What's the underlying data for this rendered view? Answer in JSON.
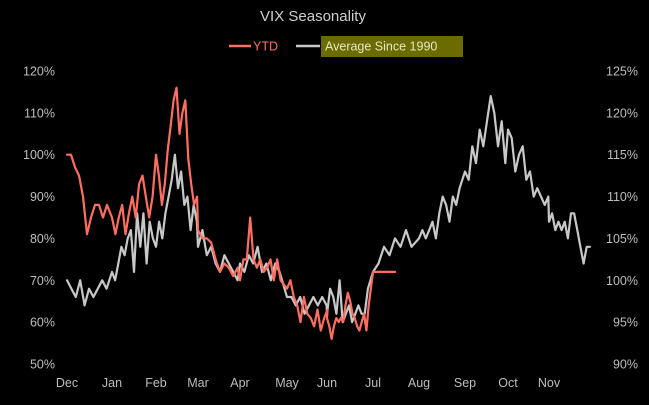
{
  "chart_data": {
    "type": "line",
    "title": "VIX Seasonality",
    "legend": {
      "placement": "top-center"
    },
    "x_ticks": [
      "Dec",
      "Jan",
      "Feb",
      "Mar",
      "Apr",
      "May",
      "Jun",
      "Jul",
      "Aug",
      "Sep",
      "Oct",
      "Nov"
    ],
    "y_left": {
      "ticks": [
        "50%",
        "60%",
        "70%",
        "80%",
        "90%",
        "100%",
        "110%",
        "120%"
      ],
      "range": [
        50,
        120
      ]
    },
    "y_right": {
      "ticks": [
        "90%",
        "95%",
        "100%",
        "105%",
        "110%",
        "115%",
        "120%",
        "125%"
      ],
      "range": [
        90,
        125
      ]
    },
    "grid": false,
    "series": [
      {
        "name": "YTD",
        "axis": "left",
        "color": "#ff6f61",
        "points": [
          [
            "Dec",
            100
          ],
          [
            "Dec",
            100
          ],
          [
            "Dec",
            97
          ],
          [
            "Dec",
            95
          ],
          [
            "Dec",
            90
          ],
          [
            "Dec",
            81
          ],
          [
            "Dec",
            85
          ],
          [
            "Dec",
            88
          ],
          [
            "Dec",
            88
          ],
          [
            "Dec",
            85
          ],
          [
            "Dec",
            88
          ],
          [
            "Jan",
            85
          ],
          [
            "Jan",
            81
          ],
          [
            "Jan",
            85
          ],
          [
            "Jan",
            88
          ],
          [
            "Jan",
            81
          ],
          [
            "Jan",
            86
          ],
          [
            "Jan",
            90
          ],
          [
            "Jan",
            85
          ],
          [
            "Jan",
            93
          ],
          [
            "Jan",
            95
          ],
          [
            "Jan",
            90
          ],
          [
            "Jan",
            85
          ],
          [
            "Jan",
            90
          ],
          [
            "Feb",
            100
          ],
          [
            "Feb",
            95
          ],
          [
            "Feb",
            88
          ],
          [
            "Feb",
            93
          ],
          [
            "Feb",
            101
          ],
          [
            "Feb",
            107
          ],
          [
            "Feb",
            113
          ],
          [
            "Feb",
            116
          ],
          [
            "Feb",
            105
          ],
          [
            "Feb",
            110
          ],
          [
            "Feb",
            113
          ],
          [
            "Feb",
            99
          ],
          [
            "Feb",
            93
          ],
          [
            "Feb",
            88
          ],
          [
            "Feb",
            90
          ],
          [
            "Mar",
            82
          ],
          [
            "Mar",
            80
          ],
          [
            "Mar",
            80
          ],
          [
            "Mar",
            79
          ],
          [
            "Mar",
            75
          ],
          [
            "Mar",
            72
          ],
          [
            "Mar",
            74
          ],
          [
            "Mar",
            73
          ],
          [
            "Mar",
            71
          ],
          [
            "Mar",
            73
          ],
          [
            "Apr",
            70
          ],
          [
            "Apr",
            75
          ],
          [
            "Apr",
            75
          ],
          [
            "Apr",
            85
          ],
          [
            "Apr",
            75
          ],
          [
            "Apr",
            73
          ],
          [
            "Apr",
            75
          ],
          [
            "Apr",
            72
          ],
          [
            "Apr",
            73
          ],
          [
            "Apr",
            75
          ],
          [
            "Apr",
            70
          ],
          [
            "Apr",
            75
          ],
          [
            "Apr",
            70
          ],
          [
            "May",
            68
          ],
          [
            "May",
            70
          ],
          [
            "May",
            66
          ],
          [
            "May",
            64
          ],
          [
            "May",
            60
          ],
          [
            "May",
            66
          ],
          [
            "May",
            62
          ],
          [
            "May",
            61
          ],
          [
            "May",
            59
          ],
          [
            "May",
            63
          ],
          [
            "May",
            58
          ],
          [
            "May",
            61
          ],
          [
            "May",
            63
          ],
          [
            "Jun",
            61
          ],
          [
            "Jun",
            59
          ],
          [
            "Jun",
            56
          ],
          [
            "Jun",
            59
          ],
          [
            "Jun",
            61
          ],
          [
            "Jun",
            60
          ],
          [
            "Jun",
            61
          ],
          [
            "Jun",
            60
          ],
          [
            "Jun",
            64
          ],
          [
            "Jun",
            67
          ],
          [
            "Jun",
            65
          ],
          [
            "Jun",
            62
          ],
          [
            "Jun",
            61
          ],
          [
            "Jun",
            59
          ],
          [
            "Jun",
            58
          ],
          [
            "Jun",
            60
          ],
          [
            "Jun",
            62
          ],
          [
            "Jun",
            58
          ],
          [
            "Jun",
            64
          ],
          [
            "Jul",
            72
          ],
          [
            "Jul",
            72
          ]
        ]
      },
      {
        "name": "Average Since 1990",
        "axis": "right",
        "color": "#c8c8c8",
        "points": [
          [
            "Dec",
            100
          ],
          [
            "Dec",
            99
          ],
          [
            "Dec",
            98
          ],
          [
            "Dec",
            100
          ],
          [
            "Dec",
            97
          ],
          [
            "Dec",
            99
          ],
          [
            "Dec",
            98
          ],
          [
            "Dec",
            99
          ],
          [
            "Dec",
            100
          ],
          [
            "Dec",
            99
          ],
          [
            "Jan",
            101
          ],
          [
            "Jan",
            100
          ],
          [
            "Jan",
            102
          ],
          [
            "Jan",
            104
          ],
          [
            "Jan",
            103
          ],
          [
            "Jan",
            105
          ],
          [
            "Jan",
            106
          ],
          [
            "Jan",
            101
          ],
          [
            "Jan",
            108
          ],
          [
            "Jan",
            104
          ],
          [
            "Jan",
            108
          ],
          [
            "Jan",
            102
          ],
          [
            "Jan",
            107
          ],
          [
            "Jan",
            105
          ],
          [
            "Feb",
            104
          ],
          [
            "Feb",
            107
          ],
          [
            "Feb",
            105
          ],
          [
            "Feb",
            108
          ],
          [
            "Feb",
            110
          ],
          [
            "Feb",
            112
          ],
          [
            "Feb",
            115
          ],
          [
            "Feb",
            111
          ],
          [
            "Feb",
            113
          ],
          [
            "Feb",
            109
          ],
          [
            "Feb",
            110
          ],
          [
            "Feb",
            106
          ],
          [
            "Feb",
            109
          ],
          [
            "Feb",
            107
          ],
          [
            "Mar",
            104
          ],
          [
            "Mar",
            106
          ],
          [
            "Mar",
            103
          ],
          [
            "Mar",
            104
          ],
          [
            "Mar",
            102
          ],
          [
            "Mar",
            101
          ],
          [
            "Mar",
            103
          ],
          [
            "Mar",
            102
          ],
          [
            "Mar",
            101
          ],
          [
            "Mar",
            100
          ],
          [
            "Apr",
            102
          ],
          [
            "Apr",
            101
          ],
          [
            "Apr",
            103
          ],
          [
            "Apr",
            102
          ],
          [
            "Apr",
            104
          ],
          [
            "Apr",
            101
          ],
          [
            "Apr",
            102
          ],
          [
            "Apr",
            100
          ],
          [
            "Apr",
            102
          ],
          [
            "Apr",
            101
          ],
          [
            "May",
            98
          ],
          [
            "May",
            98
          ],
          [
            "May",
            97
          ],
          [
            "May",
            98
          ],
          [
            "May",
            96
          ],
          [
            "May",
            97
          ],
          [
            "May",
            98
          ],
          [
            "May",
            97
          ],
          [
            "May",
            98
          ],
          [
            "May",
            97
          ],
          [
            "Jun",
            96
          ],
          [
            "Jun",
            99
          ],
          [
            "Jun",
            98
          ],
          [
            "Jun",
            96
          ],
          [
            "Jun",
            100
          ],
          [
            "Jun",
            95
          ],
          [
            "Jun",
            96
          ],
          [
            "Jun",
            97
          ],
          [
            "Jun",
            95
          ],
          [
            "Jun",
            96
          ],
          [
            "Jun",
            97
          ],
          [
            "Jun",
            96
          ],
          [
            "Jun",
            96
          ],
          [
            "Jun",
            99
          ],
          [
            "Jul",
            101
          ],
          [
            "Jul",
            102
          ],
          [
            "Jul",
            104
          ],
          [
            "Jul",
            103
          ],
          [
            "Jul",
            105
          ],
          [
            "Jul",
            104
          ],
          [
            "Jul",
            106
          ],
          [
            "Jul",
            104
          ],
          [
            "Aug",
            105
          ],
          [
            "Aug",
            106
          ],
          [
            "Aug",
            105
          ],
          [
            "Aug",
            106
          ],
          [
            "Aug",
            107
          ],
          [
            "Aug",
            105
          ],
          [
            "Aug",
            108
          ],
          [
            "Aug",
            110
          ],
          [
            "Aug",
            109
          ],
          [
            "Aug",
            107
          ],
          [
            "Aug",
            110
          ],
          [
            "Aug",
            109
          ],
          [
            "Aug",
            111
          ],
          [
            "Sep",
            113
          ],
          [
            "Sep",
            112
          ],
          [
            "Sep",
            116
          ],
          [
            "Sep",
            114
          ],
          [
            "Sep",
            118
          ],
          [
            "Sep",
            116
          ],
          [
            "Sep",
            119
          ],
          [
            "Sep",
            122
          ],
          [
            "Sep",
            120
          ],
          [
            "Sep",
            116
          ],
          [
            "Sep",
            119
          ],
          [
            "Sep",
            114
          ],
          [
            "Oct",
            118
          ],
          [
            "Oct",
            117
          ],
          [
            "Oct",
            113
          ],
          [
            "Oct",
            115
          ],
          [
            "Oct",
            116
          ],
          [
            "Oct",
            112
          ],
          [
            "Oct",
            113
          ],
          [
            "Oct",
            110
          ],
          [
            "Oct",
            111
          ],
          [
            "Oct",
            110
          ],
          [
            "Oct",
            109
          ],
          [
            "Oct",
            110
          ],
          [
            "Nov",
            107
          ],
          [
            "Nov",
            108
          ],
          [
            "Nov",
            106
          ],
          [
            "Nov",
            107
          ],
          [
            "Nov",
            106
          ],
          [
            "Nov",
            107
          ],
          [
            "Nov",
            105
          ],
          [
            "Nov",
            108
          ],
          [
            "Nov",
            108
          ],
          [
            "Nov",
            106
          ],
          [
            "Nov",
            104
          ],
          [
            "Nov",
            102
          ],
          [
            "Nov",
            104
          ],
          [
            "Nov",
            104
          ]
        ]
      }
    ]
  },
  "legend": {
    "ytd_label": "YTD",
    "avg_label": "Average Since 1990",
    "avg_highlight": "#6b6b00"
  }
}
